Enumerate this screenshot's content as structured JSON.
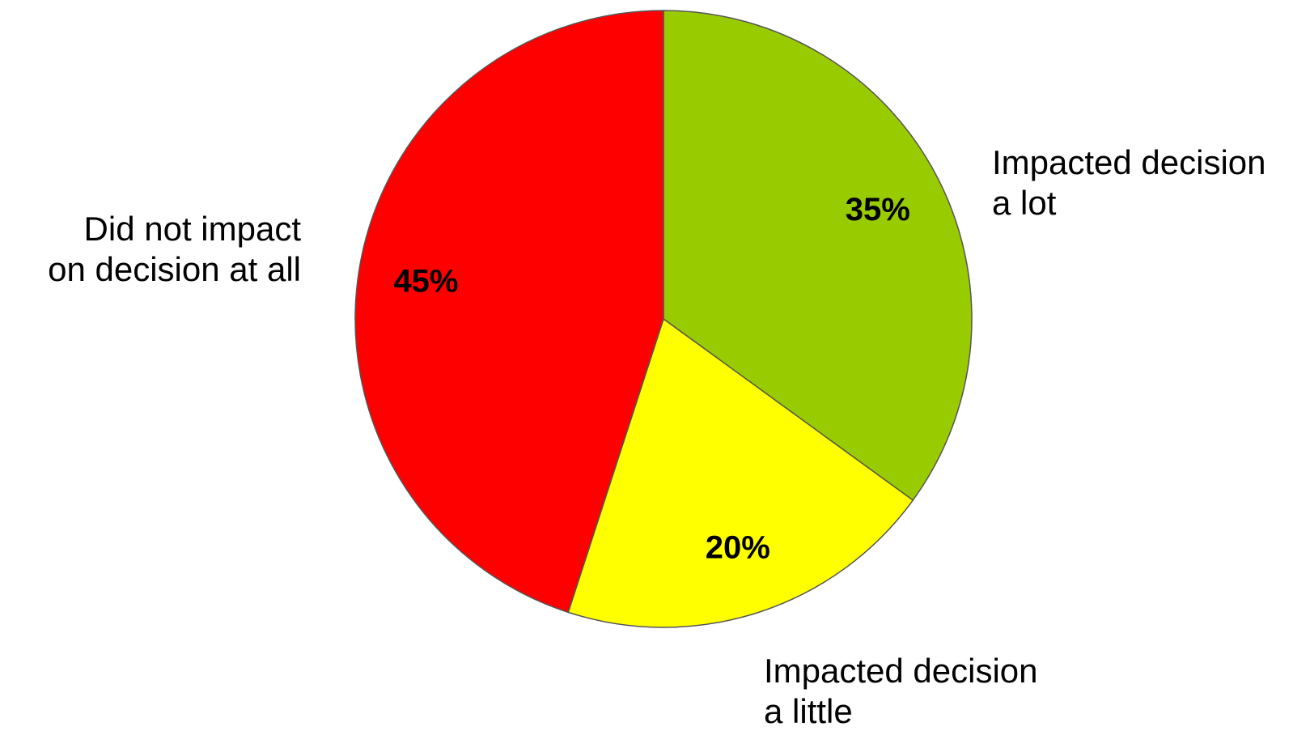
{
  "chart_data": {
    "type": "pie",
    "slices": [
      {
        "key": "lot",
        "value": 35,
        "value_label": "35%",
        "category_lines": [
          "Impacted decision",
          "a lot"
        ],
        "color": "#99cc00"
      },
      {
        "key": "little",
        "value": 20,
        "value_label": "20%",
        "category_lines": [
          "Impacted decision",
          "a little"
        ],
        "color": "#ffff00"
      },
      {
        "key": "none",
        "value": 45,
        "value_label": "45%",
        "category_lines": [
          "Did not impact",
          "on decision at all"
        ],
        "color": "#ff0000"
      }
    ],
    "start": "top",
    "direction": "clockwise",
    "slice_border_color": "#555555"
  }
}
